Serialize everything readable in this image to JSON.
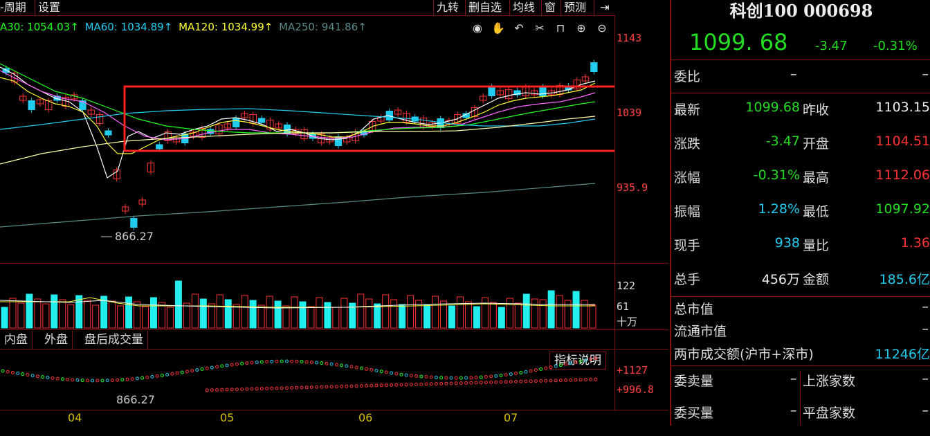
{
  "topbar": {
    "period_label": "-周期",
    "settings_label": "设置",
    "buttons": [
      "九转",
      "删自选",
      "均线",
      "窗",
      "预测"
    ],
    "pin_icon": "pin-icon"
  },
  "ma_legend": {
    "ma30": "A30: 1054.03↑",
    "ma60": "MA60: 1034.89↑",
    "ma120": "MA120: 1034.99↑",
    "ma250": "MA250: 941.86↑",
    "colors": {
      "ma30": "#22ff22",
      "ma60": "#22ccee",
      "ma120": "#ffff33",
      "ma250": "#5a8a8a"
    }
  },
  "toolbar_icons": [
    "eye-icon",
    "hand-icon",
    "undo-icon",
    "scissors-icon",
    "lock-icon",
    "zoom-in-icon",
    "zoom-out-icon"
  ],
  "price_axis": [
    "1143",
    "1039",
    "935.9"
  ],
  "low_marker": "866.27",
  "volume_axis": [
    "122",
    "61",
    "十万"
  ],
  "tabs": [
    "内盘",
    "外盘",
    "盘后成交量"
  ],
  "indicator_button": "指标说明",
  "indicator_axis": [
    "+1127",
    "+996.8"
  ],
  "indicator_low": "866.27",
  "x_axis_dates": [
    "04",
    "05",
    "06",
    "07"
  ],
  "panel": {
    "title": "科创100 000698",
    "price": "1099. 68",
    "change": "-3.47",
    "change_pct": "-0.31%",
    "weibi_label": "委比",
    "weibi_v1": "–",
    "weibi_v2": "–",
    "rows": [
      {
        "l1": "最新",
        "v1": "1099.68",
        "c1": "green",
        "l2": "昨收",
        "v2": "1103.15",
        "c2": "white"
      },
      {
        "l1": "涨跌",
        "v1": "-3.47",
        "c1": "green",
        "l2": "开盘",
        "v2": "1104.51",
        "c2": "red"
      },
      {
        "l1": "涨幅",
        "v1": "-0.31%",
        "c1": "green",
        "l2": "最高",
        "v2": "1112.06",
        "c2": "red"
      },
      {
        "l1": "振幅",
        "v1": "1.28%",
        "c1": "cyan",
        "l2": "最低",
        "v2": "1097.92",
        "c2": "green"
      },
      {
        "l1": "现手",
        "v1": "938",
        "c1": "cyan",
        "l2": "量比",
        "v2": "1.36",
        "c2": "red"
      },
      {
        "l1": "总手",
        "v1": "456万",
        "c1": "white",
        "l2": "金额",
        "v2": "185.6亿",
        "c2": "cyan"
      }
    ],
    "market_cap_label": "总市值",
    "market_cap_value": "–",
    "float_cap_label": "流通市值",
    "float_cap_value": "–",
    "turnover_label": "两市成交额(沪市+深市)",
    "turnover_value": "11246亿",
    "sell_label": "委卖量",
    "sell_value": "–",
    "rise_label": "上涨家数",
    "rise_value": "–",
    "buy_label": "委买量",
    "buy_value": "–",
    "flat_label": "平盘家数",
    "flat_value": "–"
  }
}
